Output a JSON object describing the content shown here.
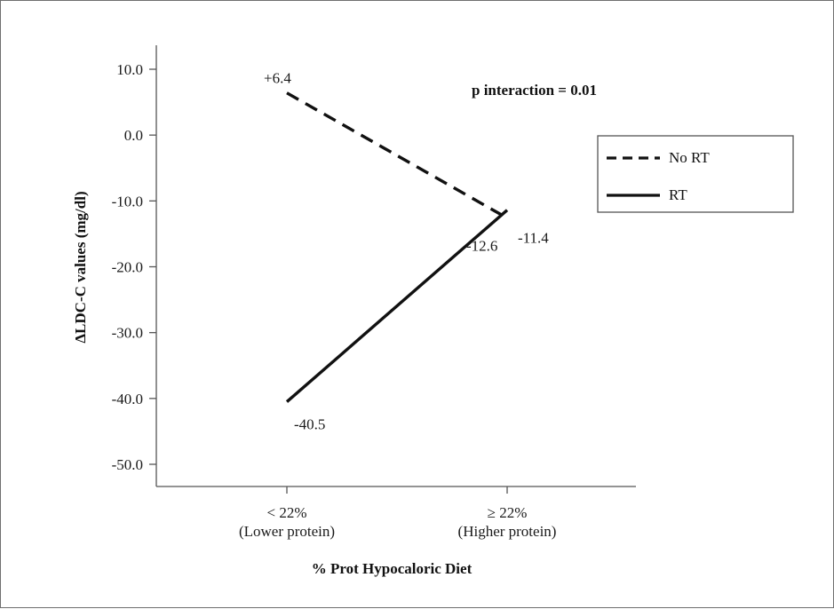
{
  "chart_data": {
    "type": "line",
    "categories": [
      "< 22%\n(Lower protein)",
      "≥ 22%\n(Higher protein)"
    ],
    "series": [
      {
        "name": "No RT",
        "values": [
          6.4,
          -12.6
        ],
        "labels": [
          "+6.4",
          "-12.6"
        ],
        "style": "dashed"
      },
      {
        "name": "RT",
        "values": [
          -40.5,
          -11.4
        ],
        "labels": [
          "-40.5",
          "-11.4"
        ],
        "style": "solid"
      }
    ],
    "xlabel": "% Prot Hypocaloric Diet",
    "ylabel": "ΔLDC-C values (mg/dl)",
    "ylim": [
      -50,
      10
    ],
    "yticks": [
      10,
      0,
      -10,
      -20,
      -30,
      -40,
      -50
    ],
    "ytick_labels": [
      "10.0",
      "0.0",
      "-10.0",
      "-20.0",
      "-30.0",
      "-40.0",
      "-50.0"
    ],
    "annotation": "p interaction = 0.01",
    "legend_position": "right",
    "grid": false,
    "line_color": "#111111"
  }
}
